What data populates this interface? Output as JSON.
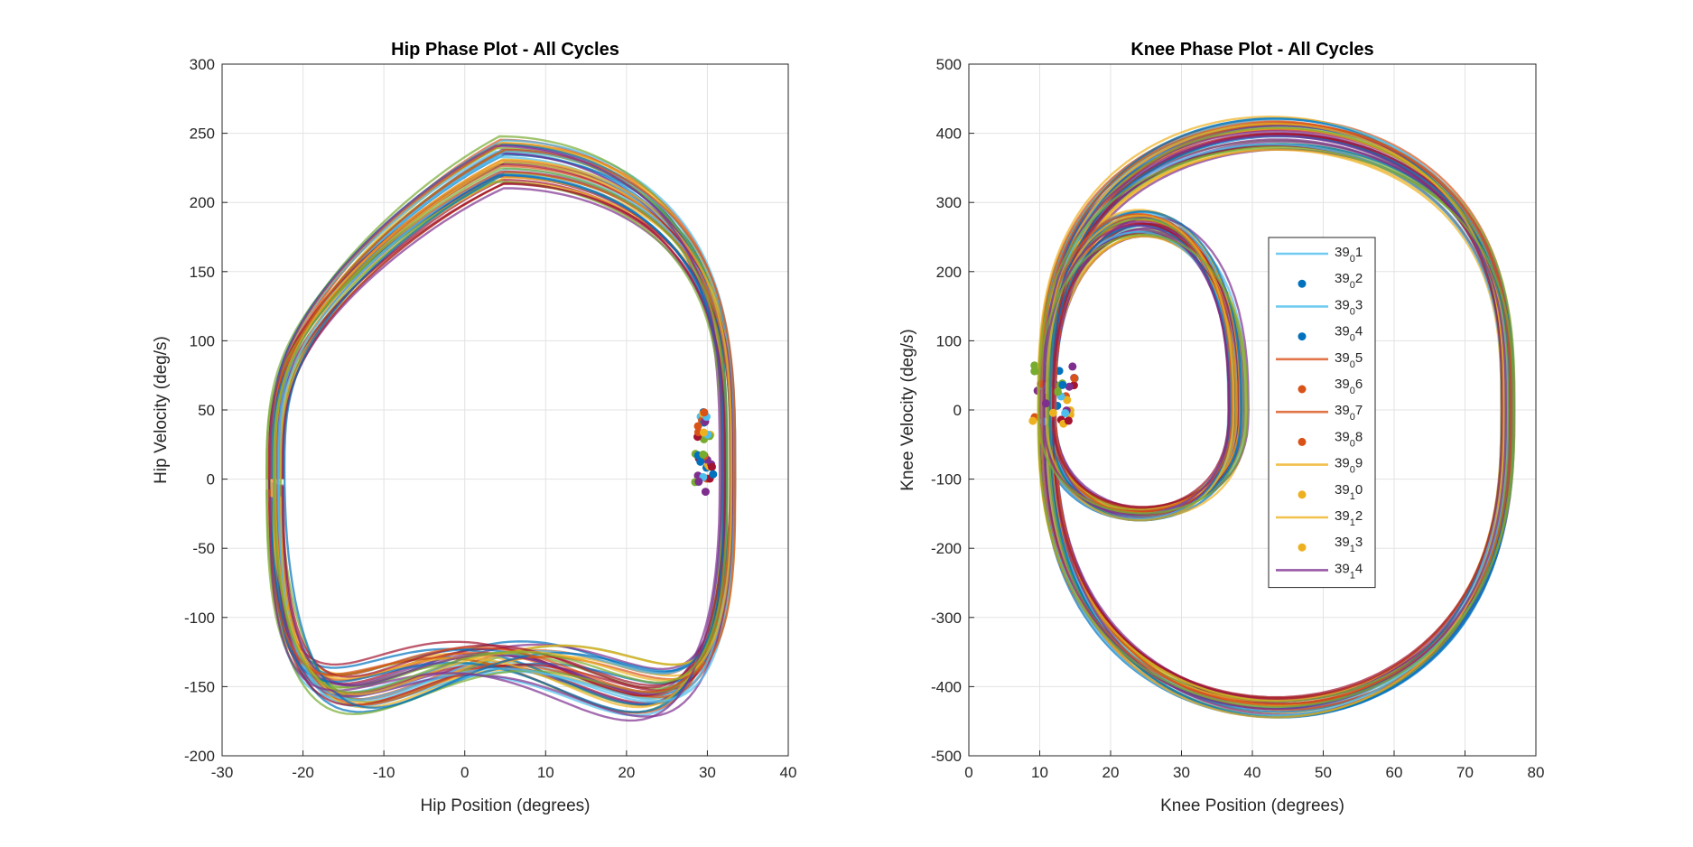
{
  "chart_data": [
    {
      "type": "line",
      "title": "Hip Phase Plot - All Cycles",
      "xlabel": "Hip Position (degrees)",
      "ylabel": "Hip Velocity (deg/s)",
      "xlim": [
        -30,
        40
      ],
      "ylim": [
        -200,
        300
      ],
      "xticks": [
        "-30",
        "-20",
        "-10",
        "0",
        "10",
        "20",
        "30",
        "40"
      ],
      "yticks": [
        "-200",
        "-150",
        "-100",
        "-50",
        "0",
        "50",
        "100",
        "150",
        "200",
        "250",
        "300"
      ],
      "grid": true,
      "cycles": 40,
      "loop": {
        "x_min": -23.5,
        "x_max": 32.5,
        "v_peak_pos": 230,
        "v_peak_neg": -165,
        "start_x": 29.5,
        "start_v": 20
      }
    },
    {
      "type": "line",
      "title": "Knee Phase Plot - All Cycles",
      "xlabel": "Knee Position (degrees)",
      "ylabel": "Knee Velocity (deg/s)",
      "xlim": [
        0,
        80
      ],
      "ylim": [
        -500,
        500
      ],
      "xticks": [
        "0",
        "10",
        "20",
        "30",
        "40",
        "50",
        "60",
        "70",
        "80"
      ],
      "yticks": [
        "-500",
        "-400",
        "-300",
        "-200",
        "-100",
        "0",
        "100",
        "200",
        "300",
        "400",
        "500"
      ],
      "grid": true,
      "cycles": 40,
      "loop": {
        "x_min": 10,
        "x_max": 76,
        "v_peak_pos": 400,
        "v_peak_neg": -430,
        "inner_x_max": 38,
        "inner_v_peak_pos": 270,
        "inner_v_peak_neg": -150
      },
      "legend": {
        "location": "inside-center",
        "entries": [
          {
            "label": "39",
            "sub": "0",
            "suffix": "1",
            "marker": "line",
            "color": "#4DBEEE"
          },
          {
            "label": "39",
            "sub": "0",
            "suffix": "2",
            "marker": "dot",
            "color": "#0072BD"
          },
          {
            "label": "39",
            "sub": "0",
            "suffix": "3",
            "marker": "line",
            "color": "#4DBEEE"
          },
          {
            "label": "39",
            "sub": "0",
            "suffix": "4",
            "marker": "dot",
            "color": "#0072BD"
          },
          {
            "label": "39",
            "sub": "0",
            "suffix": "5",
            "marker": "line",
            "color": "#D95319"
          },
          {
            "label": "39",
            "sub": "0",
            "suffix": "6",
            "marker": "dot",
            "color": "#D95319"
          },
          {
            "label": "39",
            "sub": "0",
            "suffix": "7",
            "marker": "line",
            "color": "#D95319"
          },
          {
            "label": "39",
            "sub": "0",
            "suffix": "8",
            "marker": "dot",
            "color": "#D95319"
          },
          {
            "label": "39",
            "sub": "0",
            "suffix": "9",
            "marker": "line",
            "color": "#EDB120"
          },
          {
            "label": "39",
            "sub": "1",
            "suffix": "0",
            "marker": "dot",
            "color": "#EDB120"
          },
          {
            "label": "39",
            "sub": "1",
            "suffix": "2",
            "marker": "line",
            "color": "#EDB120"
          },
          {
            "label": "39",
            "sub": "1",
            "suffix": "3",
            "marker": "dot",
            "color": "#EDB120"
          },
          {
            "label": "39",
            "sub": "1",
            "suffix": "4",
            "marker": "line",
            "color": "#7E2F8E"
          }
        ]
      }
    }
  ],
  "palette": [
    "#0072BD",
    "#D95319",
    "#EDB120",
    "#7E2F8E",
    "#77AC30",
    "#4DBEEE",
    "#A2142F"
  ]
}
